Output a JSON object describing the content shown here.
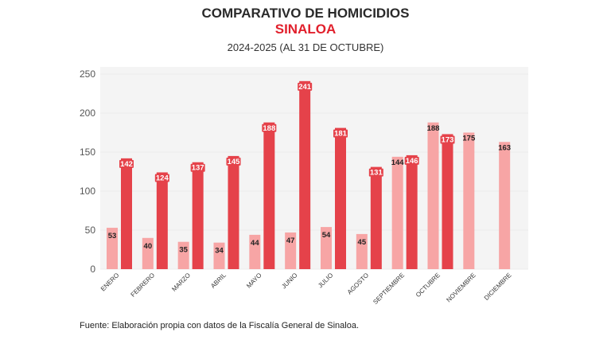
{
  "chart_data": {
    "type": "bar",
    "title": "COMPARATIVO DE HOMICIDIOS",
    "subtitle_region": "SINALOA",
    "subtitle": "2024-2025 (AL 31 DE OCTUBRE)",
    "categories": [
      "ENERO",
      "FEBRERO",
      "MARZO",
      "ABRIL",
      "MAYO",
      "JUNIO",
      "JULIO",
      "AGOSTO",
      "SEPTIEMBRE",
      "OCTUBRE",
      "NOVIEMBRE",
      "DICIEMBRE"
    ],
    "series": [
      {
        "values": [
          53,
          40,
          35,
          34,
          44,
          47,
          54,
          45,
          144,
          188,
          175,
          163
        ],
        "color": "#f7a5a5"
      },
      {
        "values": [
          142,
          124,
          137,
          145,
          188,
          241,
          181,
          131,
          146,
          173,
          null,
          null
        ],
        "color": "#e5424a"
      }
    ],
    "ylim": [
      0,
      250
    ],
    "yticks": [
      0,
      50,
      100,
      150,
      200,
      250
    ],
    "grid": true,
    "legend": "none"
  },
  "source": "Fuente: Elaboración propia con datos de la Fiscalía General de Sinaloa."
}
